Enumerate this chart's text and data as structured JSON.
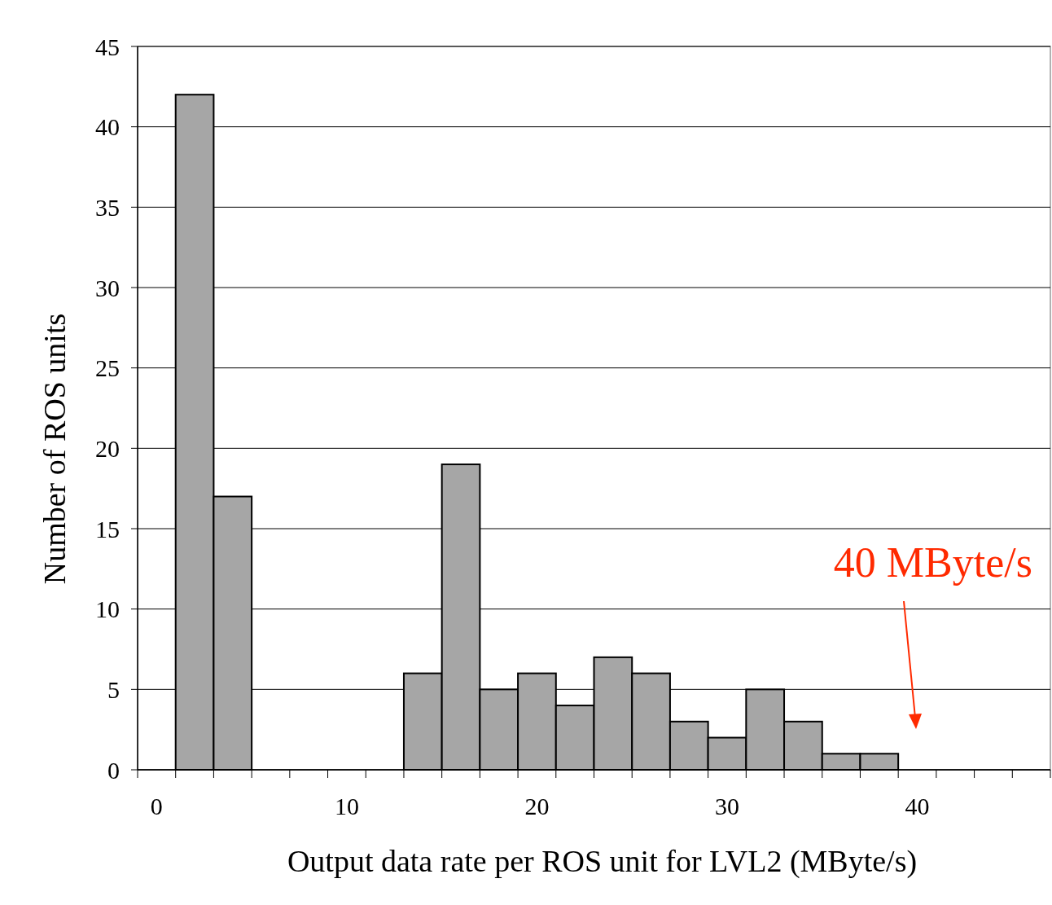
{
  "chart_data": {
    "type": "histogram",
    "xlabel": "Output data rate per ROS unit for LVL2 (MByte/s)",
    "ylabel": "Number of ROS units",
    "bins": [
      1,
      3,
      5,
      7,
      9,
      11,
      13,
      15,
      17,
      19,
      21,
      23,
      25,
      27,
      29,
      31,
      33,
      35,
      37,
      39
    ],
    "values": [
      42,
      17,
      0,
      0,
      0,
      0,
      6,
      19,
      5,
      6,
      4,
      7,
      6,
      3,
      2,
      5,
      3,
      1,
      1
    ],
    "color": "#a6a6a6",
    "xlim": [
      -1,
      47
    ],
    "xticks": [
      {
        "value": -1,
        "label": null
      },
      {
        "value": 0,
        "label": "0"
      },
      {
        "value": 1,
        "label": null
      },
      {
        "value": 3,
        "label": null
      },
      {
        "value": 5,
        "label": null
      },
      {
        "value": 7,
        "label": null
      },
      {
        "value": 9,
        "label": null
      },
      {
        "value": 10,
        "label": "10"
      },
      {
        "value": 11,
        "label": null
      },
      {
        "value": 13,
        "label": null
      },
      {
        "value": 15,
        "label": null
      },
      {
        "value": 17,
        "label": null
      },
      {
        "value": 19,
        "label": null
      },
      {
        "value": 20,
        "label": "20"
      },
      {
        "value": 21,
        "label": null
      },
      {
        "value": 23,
        "label": null
      },
      {
        "value": 25,
        "label": null
      },
      {
        "value": 27,
        "label": null
      },
      {
        "value": 29,
        "label": null
      },
      {
        "value": 30,
        "label": "30"
      },
      {
        "value": 31,
        "label": null
      },
      {
        "value": 33,
        "label": null
      },
      {
        "value": 35,
        "label": null
      },
      {
        "value": 37,
        "label": null
      },
      {
        "value": 39,
        "label": null
      },
      {
        "value": 40,
        "label": "40"
      },
      {
        "value": 41,
        "label": null
      },
      {
        "value": 43,
        "label": null
      },
      {
        "value": 45,
        "label": null
      },
      {
        "value": 47,
        "label": null
      }
    ],
    "ylim": [
      0,
      45
    ],
    "yticks": [
      0,
      5,
      10,
      15,
      20,
      25,
      30,
      35,
      40,
      45
    ],
    "grid": "y",
    "annotations": [
      "40 MByte/s"
    ]
  }
}
